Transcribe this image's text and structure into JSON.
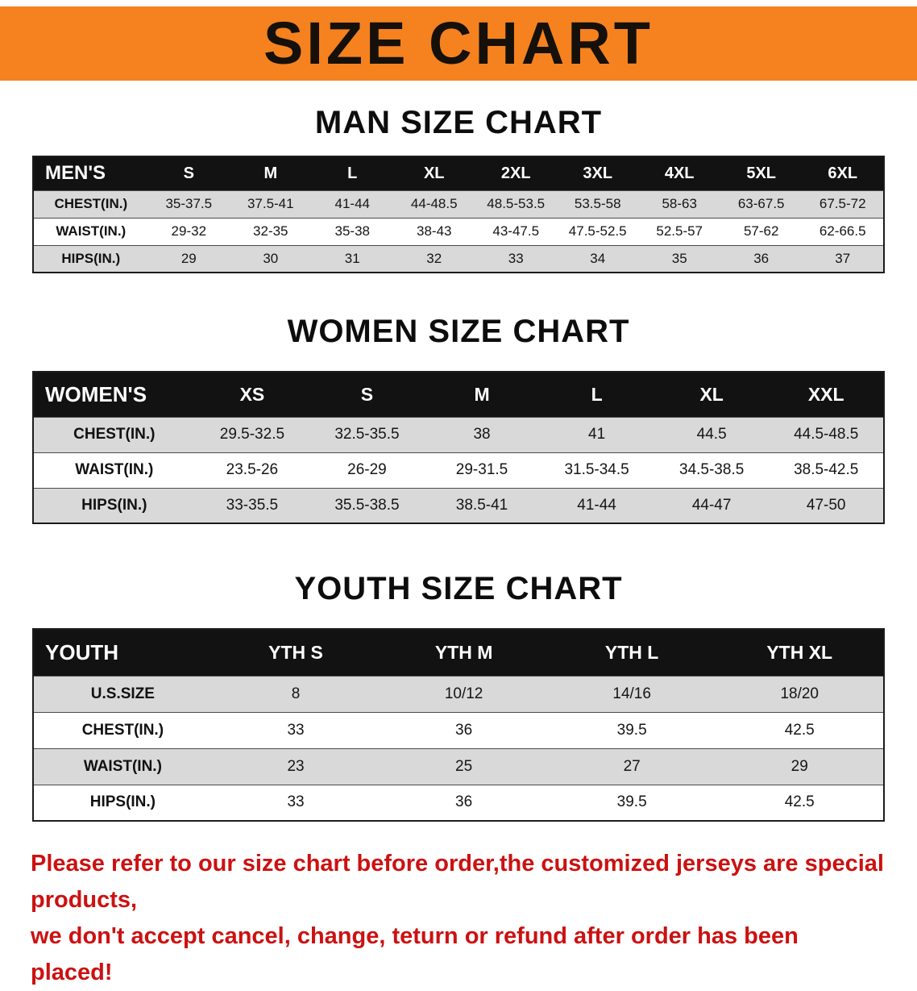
{
  "banner": {
    "title": "SIZE CHART"
  },
  "colors": {
    "banner_bg": "#f5821f",
    "header_bg": "#121212",
    "row_stripe": "#d9d9d9",
    "notice_text": "#cc1111"
  },
  "sections": [
    {
      "heading": "MAN SIZE CHART",
      "header_label": "MEN'S",
      "columns": [
        "S",
        "M",
        "L",
        "XL",
        "2XL",
        "3XL",
        "4XL",
        "5XL",
        "6XL"
      ],
      "rows": [
        {
          "label": "CHEST(IN.)",
          "values": [
            "35-37.5",
            "37.5-41",
            "41-44",
            "44-48.5",
            "48.5-53.5",
            "53.5-58",
            "58-63",
            "63-67.5",
            "67.5-72"
          ]
        },
        {
          "label": "WAIST(IN.)",
          "values": [
            "29-32",
            "32-35",
            "35-38",
            "38-43",
            "43-47.5",
            "47.5-52.5",
            "52.5-57",
            "57-62",
            "62-66.5"
          ]
        },
        {
          "label": "HIPS(IN.)",
          "values": [
            "29",
            "30",
            "31",
            "32",
            "33",
            "34",
            "35",
            "36",
            "37"
          ]
        }
      ]
    },
    {
      "heading": "WOMEN SIZE CHART",
      "header_label": "WOMEN'S",
      "columns": [
        "XS",
        "S",
        "M",
        "L",
        "XL",
        "XXL"
      ],
      "rows": [
        {
          "label": "CHEST(IN.)",
          "values": [
            "29.5-32.5",
            "32.5-35.5",
            "38",
            "41",
            "44.5",
            "44.5-48.5"
          ]
        },
        {
          "label": "WAIST(IN.)",
          "values": [
            "23.5-26",
            "26-29",
            "29-31.5",
            "31.5-34.5",
            "34.5-38.5",
            "38.5-42.5"
          ]
        },
        {
          "label": "HIPS(IN.)",
          "values": [
            "33-35.5",
            "35.5-38.5",
            "38.5-41",
            "41-44",
            "44-47",
            "47-50"
          ]
        }
      ]
    },
    {
      "heading": "YOUTH SIZE CHART",
      "header_label": "YOUTH",
      "columns": [
        "YTH S",
        "YTH M",
        "YTH L",
        "YTH XL"
      ],
      "rows": [
        {
          "label": "U.S.SIZE",
          "values": [
            "8",
            "10/12",
            "14/16",
            "18/20"
          ]
        },
        {
          "label": "CHEST(IN.)",
          "values": [
            "33",
            "36",
            "39.5",
            "42.5"
          ]
        },
        {
          "label": "WAIST(IN.)",
          "values": [
            "23",
            "25",
            "27",
            "29"
          ]
        },
        {
          "label": "HIPS(IN.)",
          "values": [
            "33",
            "36",
            "39.5",
            "42.5"
          ]
        }
      ]
    }
  ],
  "footer": {
    "line1": "Please refer to our size chart before order,the customized jerseys are special products,",
    "line2": "we don't accept cancel, change, teturn or refund after order has been placed!"
  },
  "chart_data": [
    {
      "type": "table",
      "title": "MAN SIZE CHART",
      "columns": [
        "MEN'S",
        "S",
        "M",
        "L",
        "XL",
        "2XL",
        "3XL",
        "4XL",
        "5XL",
        "6XL"
      ],
      "rows": [
        [
          "CHEST(IN.)",
          "35-37.5",
          "37.5-41",
          "41-44",
          "44-48.5",
          "48.5-53.5",
          "53.5-58",
          "58-63",
          "63-67.5",
          "67.5-72"
        ],
        [
          "WAIST(IN.)",
          "29-32",
          "32-35",
          "35-38",
          "38-43",
          "43-47.5",
          "47.5-52.5",
          "52.5-57",
          "57-62",
          "62-66.5"
        ],
        [
          "HIPS(IN.)",
          "29",
          "30",
          "31",
          "32",
          "33",
          "34",
          "35",
          "36",
          "37"
        ]
      ]
    },
    {
      "type": "table",
      "title": "WOMEN SIZE CHART",
      "columns": [
        "WOMEN'S",
        "XS",
        "S",
        "M",
        "L",
        "XL",
        "XXL"
      ],
      "rows": [
        [
          "CHEST(IN.)",
          "29.5-32.5",
          "32.5-35.5",
          "38",
          "41",
          "44.5",
          "44.5-48.5"
        ],
        [
          "WAIST(IN.)",
          "23.5-26",
          "26-29",
          "29-31.5",
          "31.5-34.5",
          "34.5-38.5",
          "38.5-42.5"
        ],
        [
          "HIPS(IN.)",
          "33-35.5",
          "35.5-38.5",
          "38.5-41",
          "41-44",
          "44-47",
          "47-50"
        ]
      ]
    },
    {
      "type": "table",
      "title": "YOUTH SIZE CHART",
      "columns": [
        "YOUTH",
        "YTH S",
        "YTH M",
        "YTH L",
        "YTH XL"
      ],
      "rows": [
        [
          "U.S.SIZE",
          "8",
          "10/12",
          "14/16",
          "18/20"
        ],
        [
          "CHEST(IN.)",
          "33",
          "36",
          "39.5",
          "42.5"
        ],
        [
          "WAIST(IN.)",
          "23",
          "25",
          "27",
          "29"
        ],
        [
          "HIPS(IN.)",
          "33",
          "36",
          "39.5",
          "42.5"
        ]
      ]
    }
  ]
}
